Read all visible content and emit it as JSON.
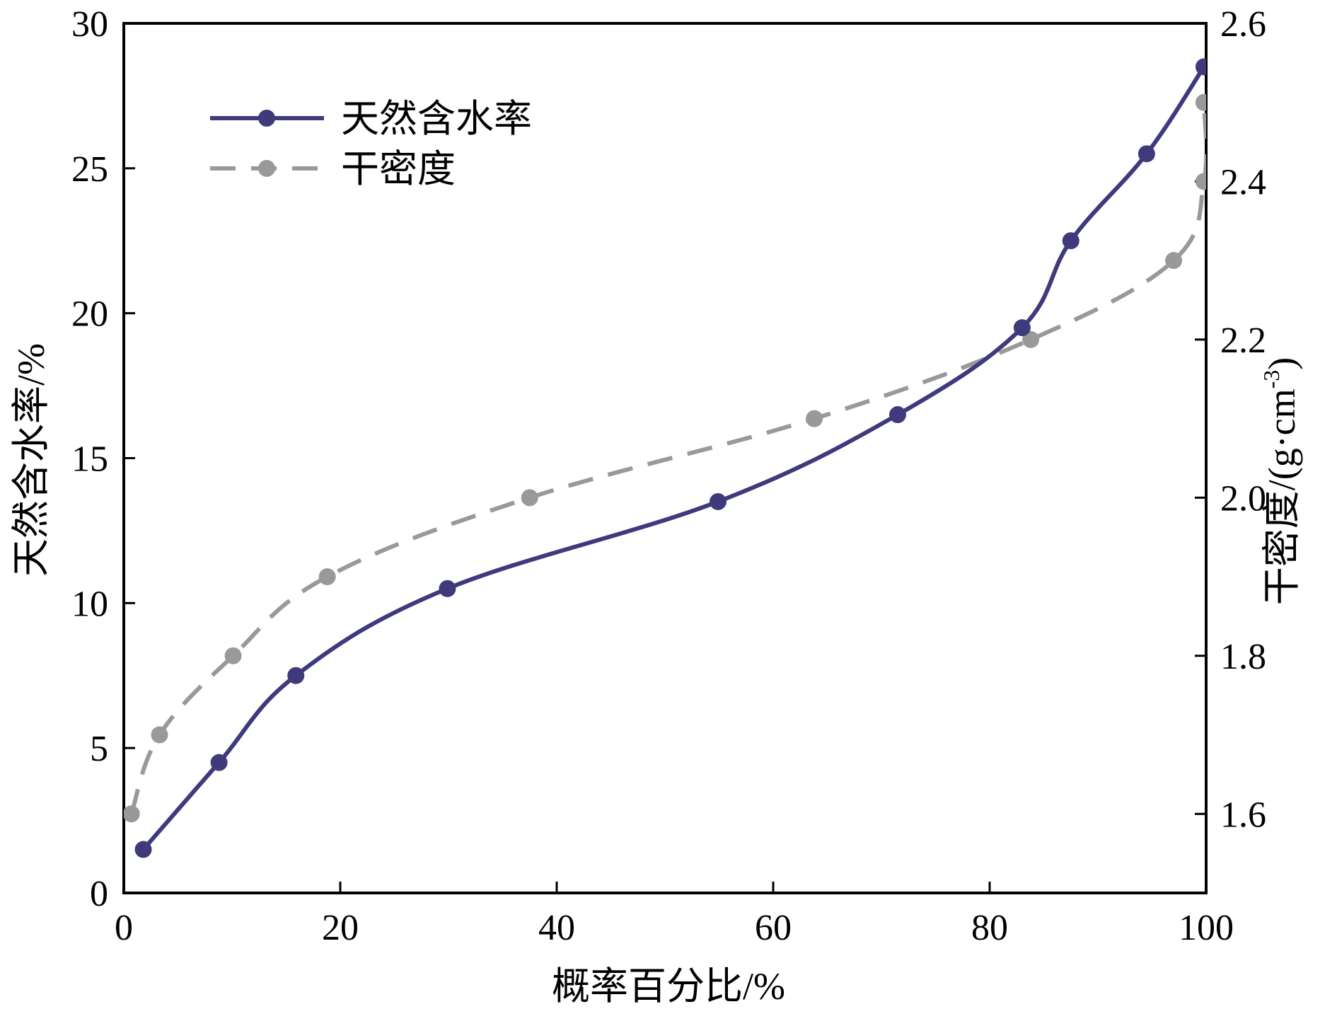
{
  "colors": {
    "moisture": "#3f3a7c",
    "density": "#999999",
    "axis": "#000000"
  },
  "chart_data": {
    "type": "line",
    "xlabel": "概率百分比/%",
    "ylabel_left": "天然含水率/%",
    "ylabel_right_main": "干密度/(g·cm",
    "ylabel_right_sup": "-3",
    "ylabel_right_close": ")",
    "xlim": [
      0,
      100
    ],
    "ylim_left": [
      0,
      30
    ],
    "ylim_right": [
      1.5,
      2.6
    ],
    "x_ticks": [
      0,
      20,
      40,
      60,
      80,
      100
    ],
    "y_left_ticks": [
      0,
      5,
      10,
      15,
      20,
      25,
      30
    ],
    "y_right_ticks": [
      1.6,
      1.8,
      2.0,
      2.2,
      2.4,
      2.6
    ],
    "y_right_tick_labels": [
      "1.6",
      "1.8",
      "2.0",
      "2.2",
      "2.4",
      "2.6"
    ],
    "legend_position": "top-left",
    "series": [
      {
        "name": "天然含水率",
        "axis": "left",
        "style": "solid",
        "x": [
          1.8,
          8.8,
          15.9,
          29.9,
          54.9,
          71.5,
          83.0,
          87.5,
          94.5,
          99.8
        ],
        "y": [
          1.5,
          4.5,
          7.5,
          10.5,
          13.5,
          16.5,
          19.5,
          22.5,
          25.5,
          28.5
        ]
      },
      {
        "name": "干密度",
        "axis": "right",
        "style": "dashed",
        "x": [
          0.7,
          3.3,
          10.1,
          18.8,
          37.5,
          63.8,
          83.8,
          97.0,
          99.8,
          99.8
        ],
        "y": [
          1.6,
          1.7,
          1.8,
          1.9,
          2.0,
          2.1,
          2.2,
          2.3,
          2.4,
          2.5
        ]
      }
    ]
  }
}
